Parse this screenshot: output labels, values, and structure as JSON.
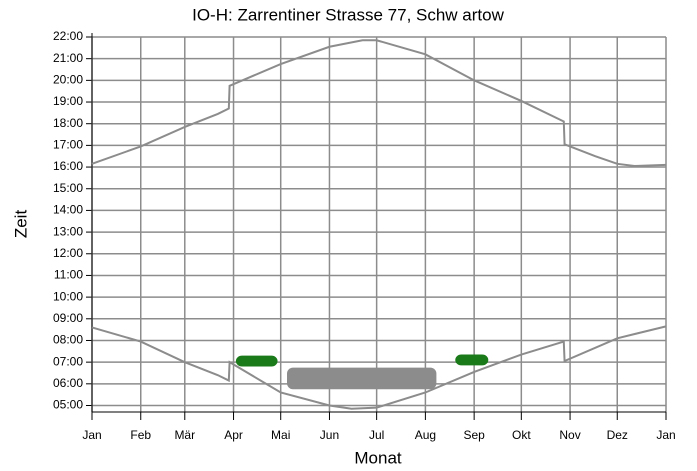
{
  "chart_data": {
    "type": "line",
    "title": "IO-H: Zarrentiner Strasse 77, Schw artow",
    "x_label": "Monat",
    "y_label": "Zeit",
    "grid": true,
    "xlim": [
      0,
      365
    ],
    "xticks": [
      {
        "value": 0,
        "label": "Jan"
      },
      {
        "value": 31,
        "label": "Feb"
      },
      {
        "value": 59,
        "label": "Mär"
      },
      {
        "value": 90,
        "label": "Apr"
      },
      {
        "value": 120,
        "label": "Mai"
      },
      {
        "value": 151,
        "label": "Jun"
      },
      {
        "value": 181,
        "label": "Jul"
      },
      {
        "value": 212,
        "label": "Aug"
      },
      {
        "value": 243,
        "label": "Sep"
      },
      {
        "value": 273,
        "label": "Okt"
      },
      {
        "value": 304,
        "label": "Nov"
      },
      {
        "value": 334,
        "label": "Dez"
      },
      {
        "value": 365,
        "label": "Jan"
      }
    ],
    "ylim": [
      4.7,
      22
    ],
    "yticks": [
      {
        "value": 5,
        "label": "05:00"
      },
      {
        "value": 6,
        "label": "06:00"
      },
      {
        "value": 7,
        "label": "07:00"
      },
      {
        "value": 8,
        "label": "08:00"
      },
      {
        "value": 9,
        "label": "09:00"
      },
      {
        "value": 10,
        "label": "10:00"
      },
      {
        "value": 11,
        "label": "11:00"
      },
      {
        "value": 12,
        "label": "12:00"
      },
      {
        "value": 13,
        "label": "13:00"
      },
      {
        "value": 14,
        "label": "14:00"
      },
      {
        "value": 15,
        "label": "15:00"
      },
      {
        "value": 16,
        "label": "16:00"
      },
      {
        "value": 17,
        "label": "17:00"
      },
      {
        "value": 18,
        "label": "18:00"
      },
      {
        "value": 19,
        "label": "19:00"
      },
      {
        "value": 20,
        "label": "20:00"
      },
      {
        "value": 21,
        "label": "21:00"
      },
      {
        "value": 22,
        "label": "22:00"
      }
    ],
    "series": [
      {
        "color": "#8c8c8c",
        "x": [
          0,
          31,
          59,
          80,
          87,
          87.5,
          120,
          151,
          172,
          181,
          212,
          243,
          273,
          300,
          300.5,
          320,
          334,
          345,
          365
        ],
        "values": [
          16.15,
          16.95,
          17.85,
          18.45,
          18.7,
          19.75,
          20.75,
          21.55,
          21.85,
          21.85,
          21.2,
          20.0,
          19.05,
          18.1,
          17.05,
          16.5,
          16.15,
          16.05,
          16.1
        ]
      },
      {
        "color": "#8c8c8c",
        "x": [
          0,
          31,
          59,
          80,
          87,
          87.5,
          120,
          151,
          165,
          181,
          212,
          243,
          273,
          300,
          300.5,
          334,
          365
        ],
        "values": [
          8.6,
          7.95,
          7.0,
          6.4,
          6.15,
          7.0,
          5.6,
          5.0,
          4.85,
          4.9,
          5.6,
          6.55,
          7.35,
          7.95,
          7.05,
          8.1,
          8.65
        ]
      }
    ],
    "shadow_areas": [
      {
        "color": "#1a7a1a",
        "x": [
          91.5,
          118
        ],
        "y": [
          6.8,
          7.3
        ]
      },
      {
        "color": "#8c8c8c",
        "x": [
          124,
          219
        ],
        "y": [
          5.75,
          6.75
        ]
      },
      {
        "color": "#1a7a1a",
        "x": [
          231,
          252
        ],
        "y": [
          6.85,
          7.35
        ]
      }
    ]
  }
}
